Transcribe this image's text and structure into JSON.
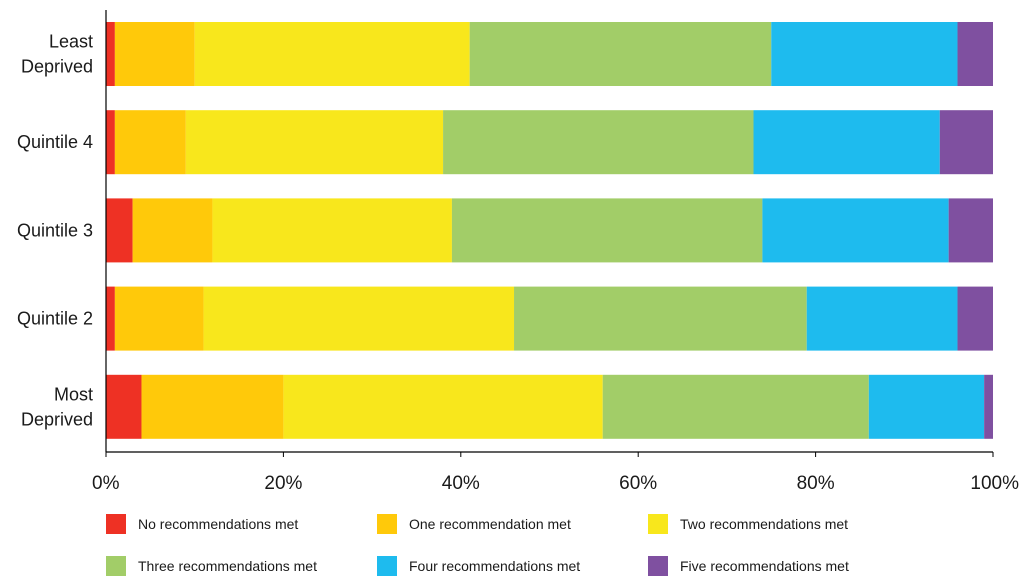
{
  "chart_data": {
    "type": "bar",
    "orientation": "horizontal",
    "stacked": true,
    "categories": [
      [
        "Least",
        "Deprived"
      ],
      [
        "Quintile 4"
      ],
      [
        "Quintile 3"
      ],
      [
        "Quintile 2"
      ],
      [
        "Most",
        "Deprived"
      ]
    ],
    "series": [
      {
        "name": "No recommendations met",
        "color": "#ee3124",
        "values": [
          1,
          1,
          3,
          1,
          4
        ]
      },
      {
        "name": "One recommendation met",
        "color": "#ffc90a",
        "values": [
          9,
          8,
          9,
          10,
          16
        ]
      },
      {
        "name": "Two recommendations met",
        "color": "#f8e71c",
        "values": [
          31,
          29,
          27,
          35,
          36
        ]
      },
      {
        "name": "Three recommendations met",
        "color": "#a2cd68",
        "values": [
          34,
          35,
          35,
          33,
          30
        ]
      },
      {
        "name": "Four recommendations met",
        "color": "#1ebbee",
        "values": [
          21,
          21,
          21,
          17,
          13
        ]
      },
      {
        "name": "Five recommendations met",
        "color": "#7f50a0",
        "values": [
          4,
          6,
          5,
          4,
          1
        ]
      }
    ],
    "x_ticks": [
      "0%",
      "20%",
      "40%",
      "60%",
      "80%",
      "100%"
    ],
    "xlim": [
      0,
      100
    ],
    "legend_position": "bottom",
    "grid": false
  }
}
